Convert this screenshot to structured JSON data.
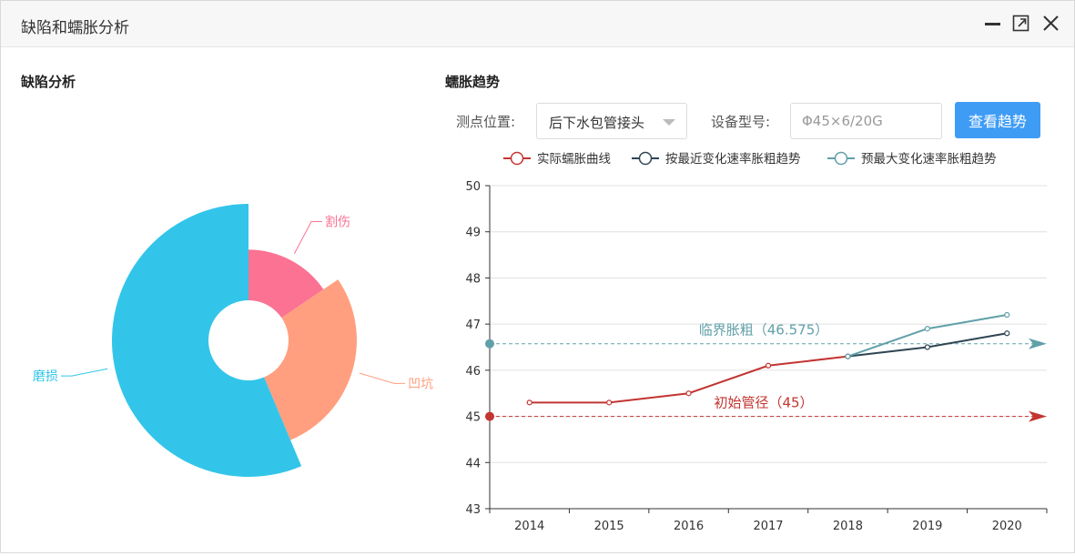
{
  "window": {
    "title": "缺陷和蠕胀分析"
  },
  "defect_panel": {
    "title": "缺陷分析"
  },
  "creep_panel": {
    "title": "蠕胀趋势",
    "position_label": "测点位置:",
    "position_value": "后下水包管接头",
    "model_label": "设备型号:",
    "model_placeholder": "Φ45×6/20G",
    "query_button": "查看趋势"
  },
  "chart_data": [
    {
      "type": "pie",
      "subtype": "rose",
      "slices": [
        {
          "label": "割伤",
          "value": 0.55,
          "color": "#fb7293"
        },
        {
          "label": "凹坑",
          "value": 1.0,
          "color": "#ff9f7f"
        },
        {
          "label": "磨损",
          "value": 2.0,
          "color": "#32c5e9"
        }
      ]
    },
    {
      "type": "line",
      "categories": [
        "2014",
        "2015",
        "2016",
        "2017",
        "2018",
        "2019",
        "2020"
      ],
      "ylim": [
        43,
        50
      ],
      "yticks": [
        43,
        44,
        45,
        46,
        47,
        48,
        49,
        50
      ],
      "legend_position": "top",
      "grid": true,
      "series": [
        {
          "name": "实际蠕胀曲线",
          "color": "#c23531",
          "values": [
            45.3,
            45.3,
            45.5,
            46.1,
            46.3,
            null,
            null
          ]
        },
        {
          "name": "按最近变化速率胀粗趋势",
          "color": "#2f4554",
          "values": [
            null,
            null,
            null,
            null,
            46.3,
            46.5,
            46.8
          ]
        },
        {
          "name": "预最大变化速率胀粗趋势",
          "color": "#61a0a8",
          "values": [
            null,
            null,
            null,
            null,
            46.3,
            46.9,
            47.2
          ]
        }
      ],
      "mark_lines": [
        {
          "label": "临界胀粗（46.575）",
          "value": 46.575,
          "color": "#61a0a8"
        },
        {
          "label": "初始管径（45）",
          "value": 45,
          "color": "#c23531"
        }
      ]
    }
  ]
}
